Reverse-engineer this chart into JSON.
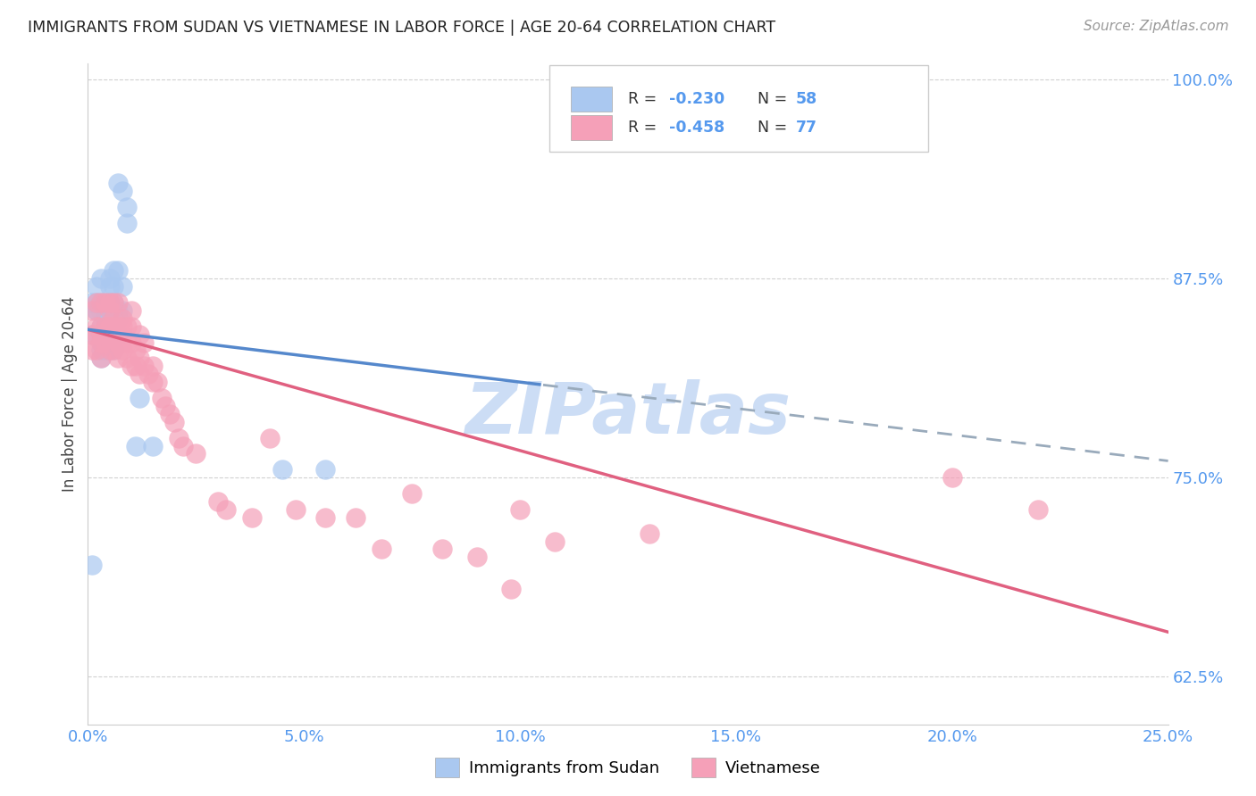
{
  "title": "IMMIGRANTS FROM SUDAN VS VIETNAMESE IN LABOR FORCE | AGE 20-64 CORRELATION CHART",
  "source": "Source: ZipAtlas.com",
  "legend_label1": "Immigrants from Sudan",
  "legend_label2": "Vietnamese",
  "legend_r1_val": "-0.230",
  "legend_n1_val": "58",
  "legend_r2_val": "-0.458",
  "legend_n2_val": "77",
  "color_sudan": "#aac8f0",
  "color_vietnam": "#f5a0b8",
  "color_sudan_line": "#5588cc",
  "color_vietnam_line": "#e06080",
  "color_sudan_dashed": "#99aabb",
  "color_axis_labels": "#5599ee",
  "watermark": "ZIPatlas",
  "watermark_color": "#ccddf5",
  "background_color": "#ffffff",
  "grid_color": "#cccccc",
  "sudan_line_intercept": 0.843,
  "sudan_line_slope": -0.33,
  "vietnam_line_intercept": 0.843,
  "vietnam_line_slope": -0.76,
  "sudan_x": [
    0.001,
    0.001,
    0.001,
    0.002,
    0.002,
    0.002,
    0.002,
    0.003,
    0.003,
    0.003,
    0.003,
    0.003,
    0.003,
    0.003,
    0.003,
    0.004,
    0.004,
    0.004,
    0.004,
    0.004,
    0.004,
    0.004,
    0.004,
    0.004,
    0.005,
    0.005,
    0.005,
    0.005,
    0.005,
    0.005,
    0.005,
    0.005,
    0.005,
    0.005,
    0.006,
    0.006,
    0.006,
    0.006,
    0.006,
    0.006,
    0.006,
    0.006,
    0.006,
    0.007,
    0.007,
    0.007,
    0.007,
    0.007,
    0.008,
    0.008,
    0.008,
    0.009,
    0.009,
    0.011,
    0.012,
    0.015,
    0.045,
    0.055
  ],
  "sudan_y": [
    0.695,
    0.84,
    0.86,
    0.855,
    0.855,
    0.86,
    0.87,
    0.825,
    0.83,
    0.835,
    0.84,
    0.845,
    0.855,
    0.86,
    0.875,
    0.83,
    0.835,
    0.835,
    0.84,
    0.845,
    0.85,
    0.85,
    0.855,
    0.86,
    0.83,
    0.84,
    0.84,
    0.845,
    0.85,
    0.855,
    0.855,
    0.86,
    0.87,
    0.875,
    0.83,
    0.84,
    0.845,
    0.845,
    0.85,
    0.855,
    0.86,
    0.87,
    0.88,
    0.84,
    0.85,
    0.855,
    0.88,
    0.935,
    0.855,
    0.87,
    0.93,
    0.91,
    0.92,
    0.77,
    0.8,
    0.77,
    0.755,
    0.755
  ],
  "vietnam_x": [
    0.001,
    0.001,
    0.001,
    0.002,
    0.002,
    0.002,
    0.002,
    0.003,
    0.003,
    0.003,
    0.003,
    0.003,
    0.004,
    0.004,
    0.004,
    0.004,
    0.005,
    0.005,
    0.005,
    0.005,
    0.005,
    0.006,
    0.006,
    0.006,
    0.006,
    0.006,
    0.007,
    0.007,
    0.007,
    0.007,
    0.007,
    0.008,
    0.008,
    0.008,
    0.008,
    0.009,
    0.009,
    0.009,
    0.01,
    0.01,
    0.01,
    0.01,
    0.011,
    0.011,
    0.012,
    0.012,
    0.012,
    0.013,
    0.013,
    0.014,
    0.015,
    0.015,
    0.016,
    0.017,
    0.018,
    0.019,
    0.02,
    0.021,
    0.022,
    0.025,
    0.03,
    0.032,
    0.038,
    0.042,
    0.048,
    0.055,
    0.062,
    0.068,
    0.075,
    0.082,
    0.09,
    0.098,
    0.1,
    0.108,
    0.13,
    0.2,
    0.22
  ],
  "vietnam_y": [
    0.83,
    0.84,
    0.855,
    0.83,
    0.84,
    0.845,
    0.86,
    0.825,
    0.835,
    0.84,
    0.845,
    0.86,
    0.835,
    0.84,
    0.845,
    0.86,
    0.83,
    0.84,
    0.845,
    0.855,
    0.86,
    0.83,
    0.84,
    0.845,
    0.85,
    0.86,
    0.825,
    0.835,
    0.84,
    0.845,
    0.86,
    0.83,
    0.84,
    0.845,
    0.85,
    0.825,
    0.835,
    0.845,
    0.82,
    0.835,
    0.845,
    0.855,
    0.82,
    0.83,
    0.815,
    0.825,
    0.84,
    0.82,
    0.835,
    0.815,
    0.81,
    0.82,
    0.81,
    0.8,
    0.795,
    0.79,
    0.785,
    0.775,
    0.77,
    0.765,
    0.735,
    0.73,
    0.725,
    0.775,
    0.73,
    0.725,
    0.725,
    0.705,
    0.74,
    0.705,
    0.7,
    0.68,
    0.73,
    0.71,
    0.715,
    0.75,
    0.73
  ],
  "xlim": [
    0.0,
    0.25
  ],
  "ylim": [
    0.595,
    1.01
  ],
  "yticks": [
    0.625,
    0.75,
    0.875,
    1.0
  ],
  "ytick_labels": [
    "62.5%",
    "75.0%",
    "87.5%",
    "100.0%"
  ],
  "xticks": [
    0.0,
    0.05,
    0.1,
    0.15,
    0.2,
    0.25
  ],
  "xtick_labels": [
    "0.0%",
    "5.0%",
    "10.0%",
    "15.0%",
    "20.0%",
    "25.0%"
  ]
}
